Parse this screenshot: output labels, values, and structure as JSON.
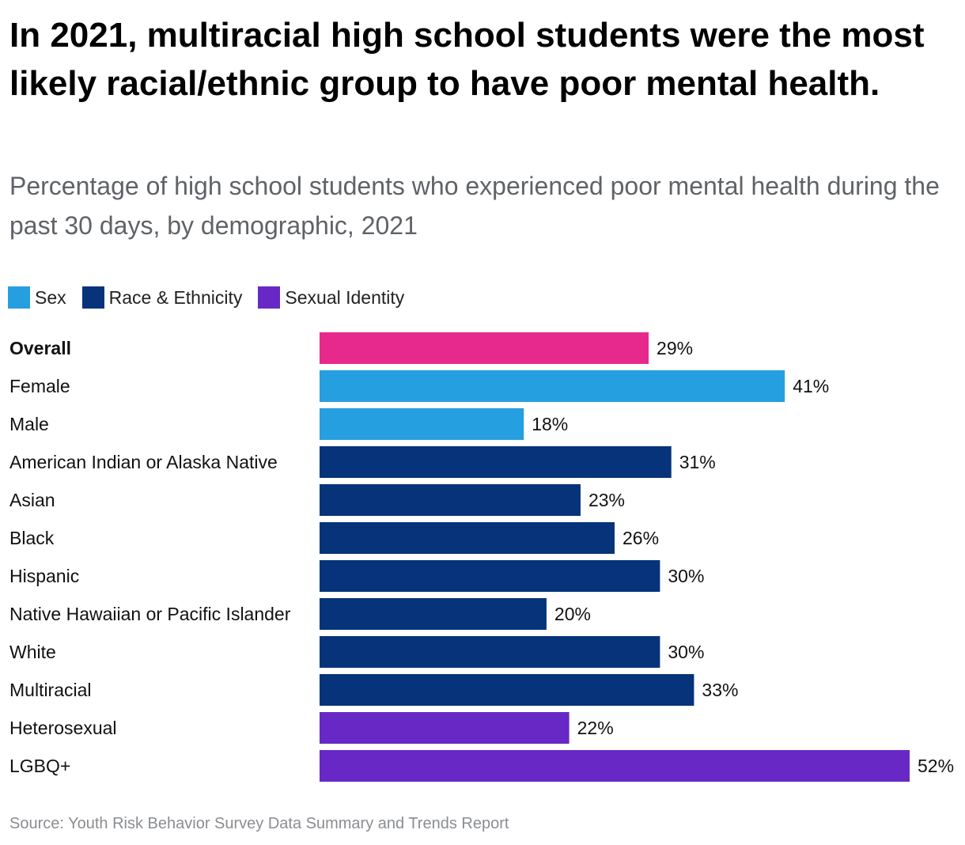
{
  "title": "In 2021, multiracial high school students were the most likely racial/ethnic group to have poor mental health.",
  "subtitle": "Percentage of high school students who experienced poor mental health during the past 30 days, by demographic, 2021",
  "legend": [
    {
      "label": "Sex",
      "color": "#259fe0"
    },
    {
      "label": "Race & Ethnicity",
      "color": "#063379"
    },
    {
      "label": "Sexual Identity",
      "color": "#6828c5"
    }
  ],
  "source": "Source: Youth Risk Behavior Survey Data Summary and Trends Report",
  "chart_data": {
    "type": "bar",
    "orientation": "horizontal",
    "title": "In 2021, multiracial high school students were the most likely racial/ethnic group to have poor mental health.",
    "xlabel": "",
    "ylabel": "",
    "xlim": [
      0,
      52
    ],
    "unit": "%",
    "categories": [
      "Overall",
      "Female",
      "Male",
      "American Indian or Alaska Native",
      "Asian",
      "Black",
      "Hispanic",
      "Native Hawaiian or Pacific Islander",
      "White",
      "Multiracial",
      "Heterosexual",
      "LGBQ+"
    ],
    "values": [
      29,
      41,
      18,
      31,
      23,
      26,
      30,
      20,
      30,
      33,
      22,
      52
    ],
    "groups": [
      "Overall",
      "Sex",
      "Sex",
      "Race & Ethnicity",
      "Race & Ethnicity",
      "Race & Ethnicity",
      "Race & Ethnicity",
      "Race & Ethnicity",
      "Race & Ethnicity",
      "Race & Ethnicity",
      "Sexual Identity",
      "Sexual Identity"
    ],
    "colors": [
      "#e8298c",
      "#259fe0",
      "#259fe0",
      "#063379",
      "#063379",
      "#063379",
      "#063379",
      "#063379",
      "#063379",
      "#063379",
      "#6828c5",
      "#6828c5"
    ],
    "value_labels": [
      "29%",
      "41%",
      "18%",
      "31%",
      "23%",
      "26%",
      "30%",
      "20%",
      "30%",
      "33%",
      "22%",
      "52%"
    ],
    "bold_categories": [
      "Overall"
    ],
    "legend_position": "top-left"
  }
}
